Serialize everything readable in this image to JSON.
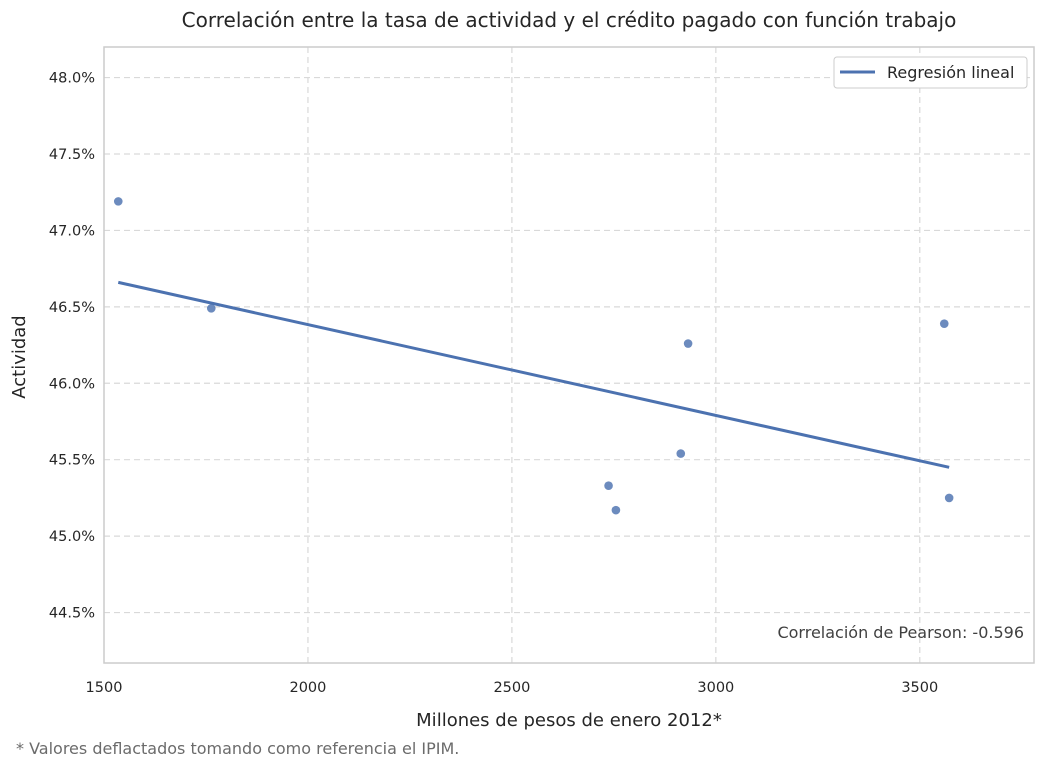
{
  "chart_data": {
    "type": "scatter",
    "title": "Correlación entre la tasa de actividad y el crédito pagado con función trabajo",
    "xlabel": "Millones de pesos de enero 2012*",
    "ylabel": "Actividad",
    "xlim": [
      1500,
      3780
    ],
    "ylim": [
      44.17,
      48.2
    ],
    "xticks": [
      1500,
      2000,
      2500,
      3000,
      3500
    ],
    "xtick_labels": [
      "1500",
      "2000",
      "2500",
      "3000",
      "3500"
    ],
    "yticks": [
      44.5,
      45.0,
      45.5,
      46.0,
      46.5,
      47.0,
      47.5,
      48.0
    ],
    "ytick_labels": [
      "44.5%",
      "45.0%",
      "45.5%",
      "46.0%",
      "46.5%",
      "47.0%",
      "47.5%",
      "48.0%"
    ],
    "grid": true,
    "legend_position": "top-right",
    "points": [
      {
        "x": 1535,
        "y": 47.19
      },
      {
        "x": 1763,
        "y": 46.49
      },
      {
        "x": 2737,
        "y": 45.33
      },
      {
        "x": 2755,
        "y": 45.17
      },
      {
        "x": 2914,
        "y": 45.54
      },
      {
        "x": 2932,
        "y": 46.26
      },
      {
        "x": 3560,
        "y": 46.39
      },
      {
        "x": 3572,
        "y": 45.25
      }
    ],
    "regression": {
      "name": "Regresión lineal",
      "x": [
        1535,
        3572
      ],
      "y": [
        46.66,
        45.45
      ]
    },
    "point_color": "#4c72b0",
    "line_color": "#4c72b0",
    "annotation": "Correlación de Pearson: -0.596"
  },
  "footnote": "* Valores deflactados tomando como referencia el IPIM."
}
